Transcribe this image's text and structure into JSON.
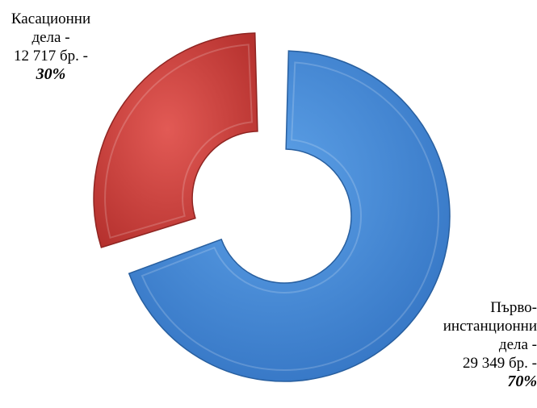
{
  "chart_data": {
    "type": "pie",
    "variant": "exploded-doughnut",
    "slices": [
      {
        "label_lines": [
          "Касационни",
          "дела -",
          "12 717 бр. -"
        ],
        "value": 12717,
        "percent_label": "30%",
        "color": "#d64541"
      },
      {
        "label_lines": [
          "Първо-",
          "инстанционни",
          "дела -",
          "29 349 бр. -"
        ],
        "value": 29349,
        "percent_label": "70%",
        "color": "#4a8fd9"
      }
    ]
  }
}
